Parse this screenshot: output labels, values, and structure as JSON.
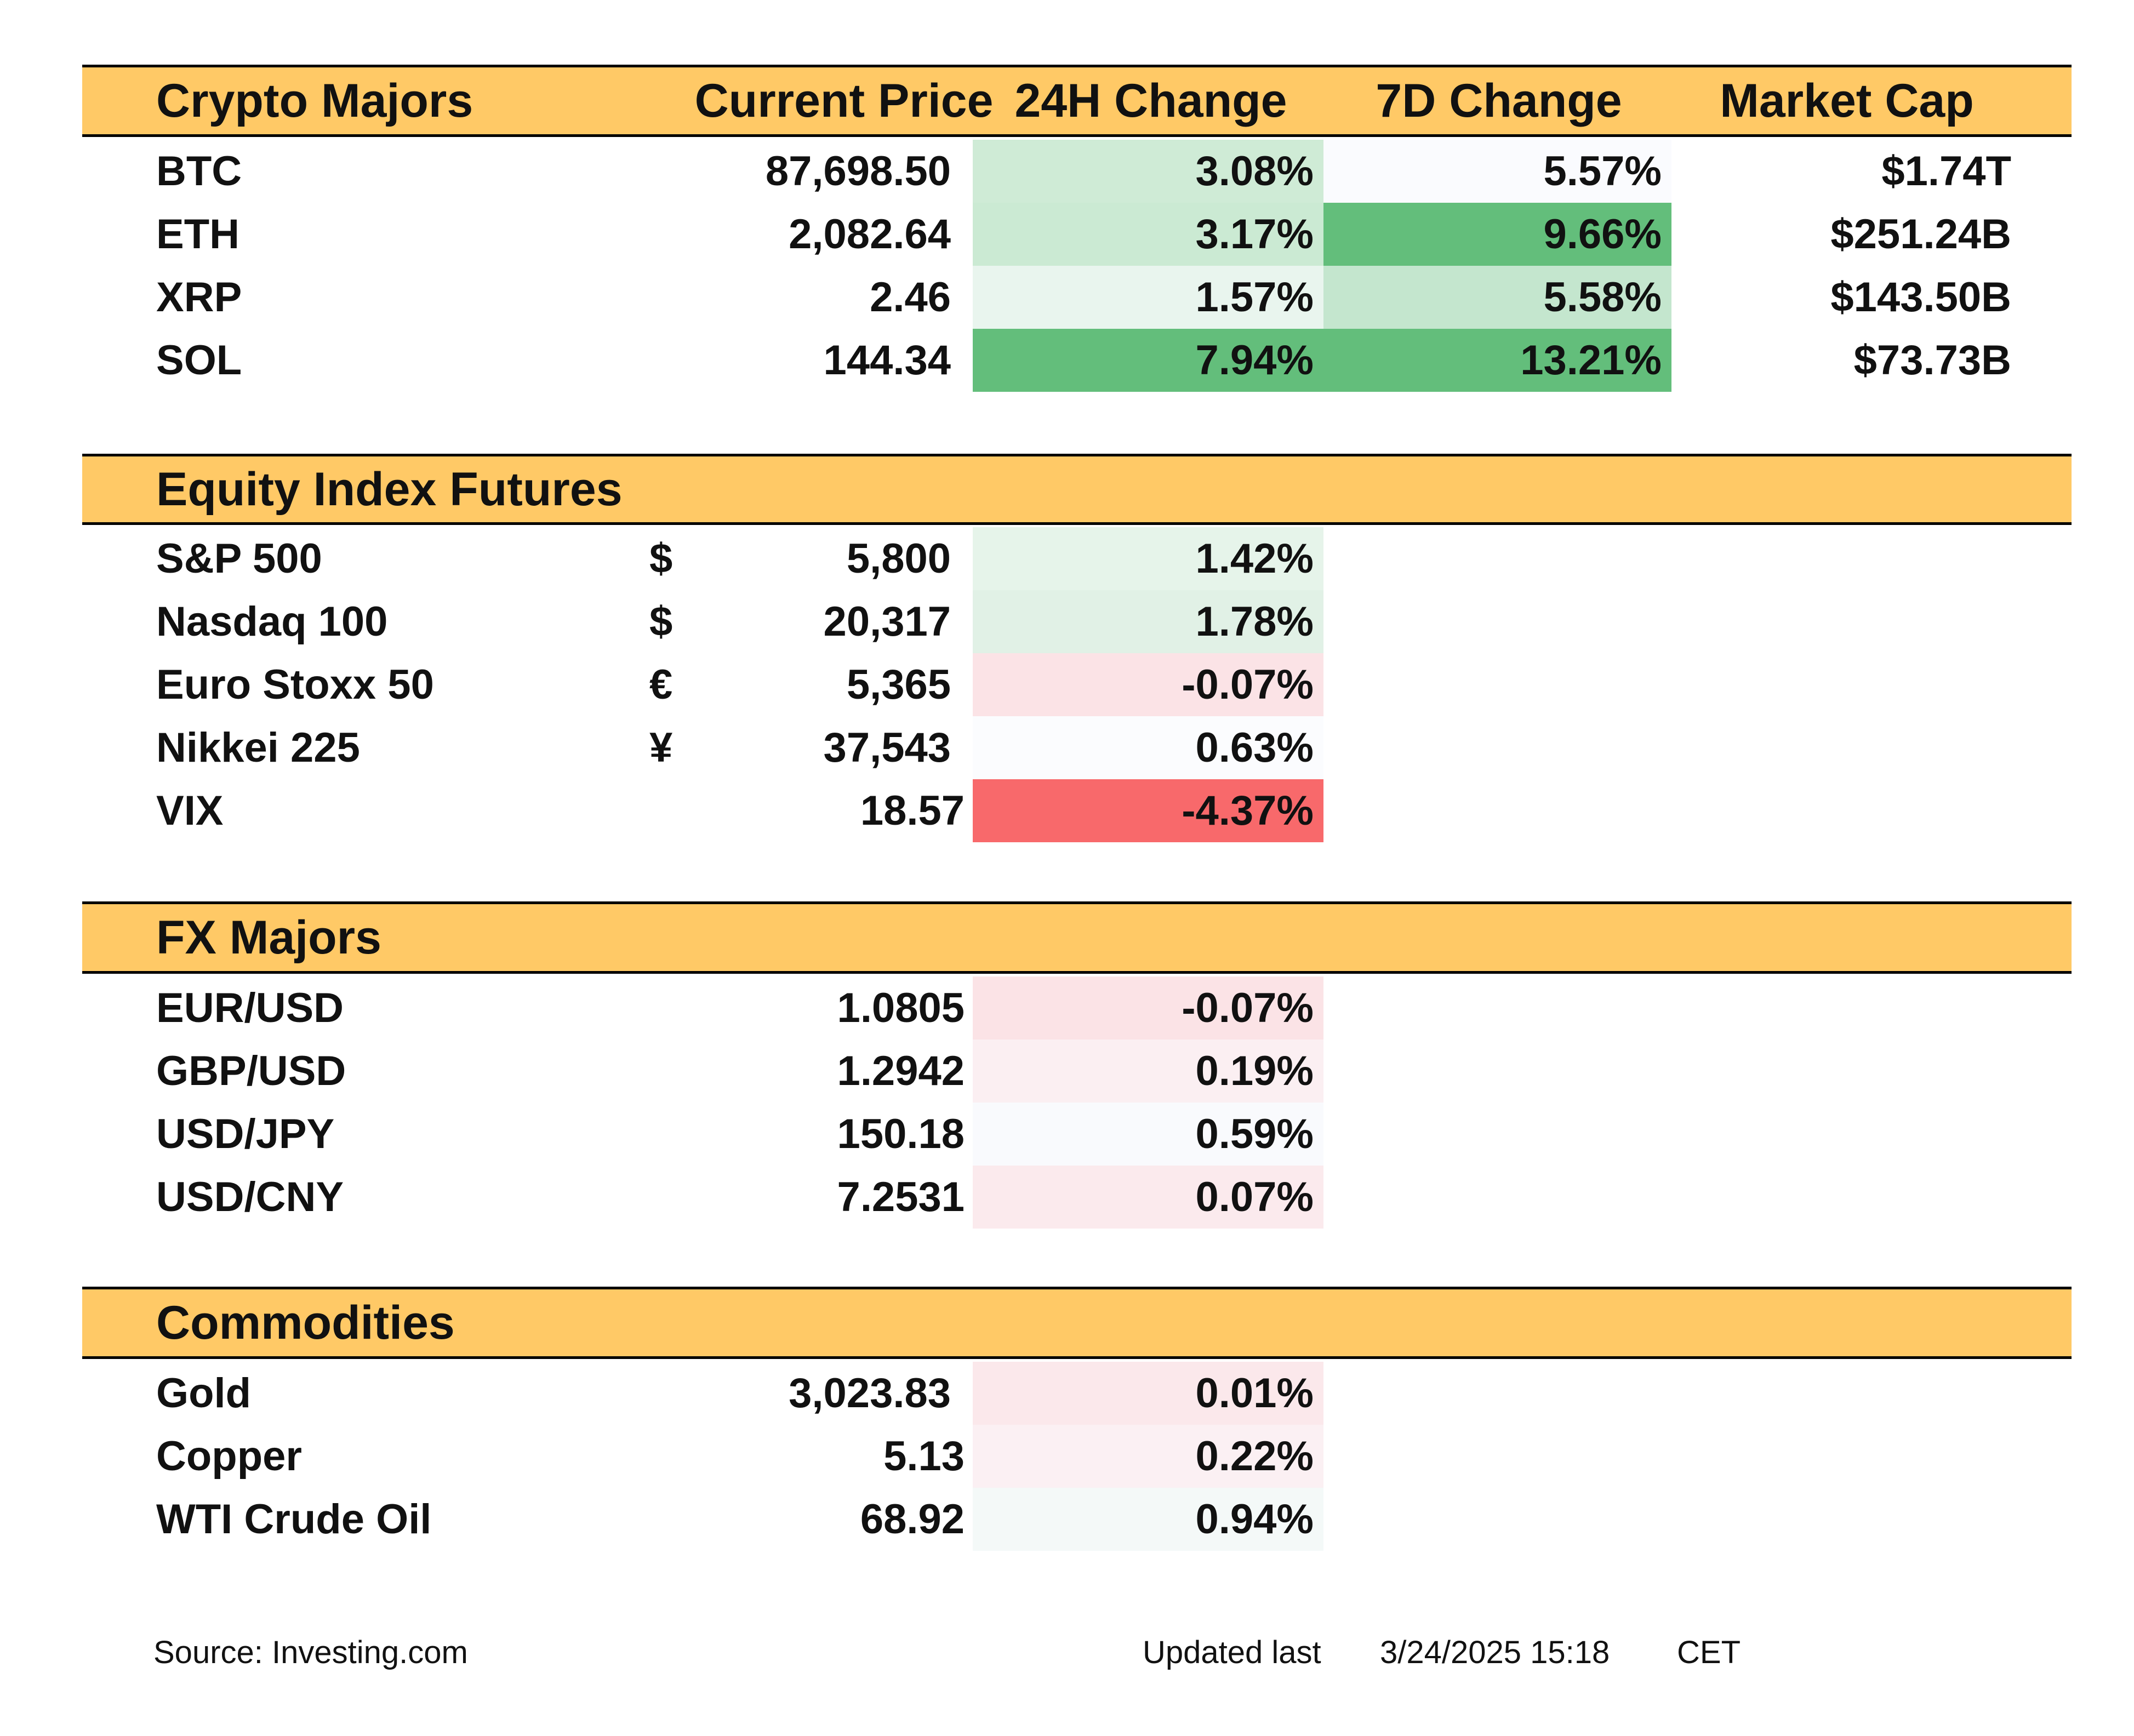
{
  "sections": {
    "crypto": {
      "title": "Crypto Majors",
      "col_price": "Current Price",
      "col_24h": "24H Change",
      "col_7d": "7D Change",
      "col_cap": "Market Cap",
      "rows": [
        {
          "name": "BTC",
          "price": "87,698.50",
          "change_24h": "3.08%",
          "change_7d": "5.57%",
          "market_cap": "$1.74T",
          "color_24h": "#CFEBD6",
          "color_7d": "#FAFBFE"
        },
        {
          "name": "ETH",
          "price": "2,082.64",
          "change_24h": "3.17%",
          "change_7d": "9.66%",
          "market_cap": "$251.24B",
          "color_24h": "#CBEAD3",
          "color_7d": "#63BE7B"
        },
        {
          "name": "XRP",
          "price": "2.46",
          "change_24h": "1.57%",
          "change_7d": "5.58%",
          "market_cap": "$143.50B",
          "color_24h": "#E9F5EE",
          "color_7d": "#C4E6CE"
        },
        {
          "name": "SOL",
          "price": "144.34",
          "change_24h": "7.94%",
          "change_7d": "13.21%",
          "market_cap": "$73.73B",
          "color_24h": "#63BE7B",
          "color_7d": "#63BE7B"
        }
      ]
    },
    "equity": {
      "title": "Equity Index Futures",
      "rows": [
        {
          "name": "S&P 500",
          "currency": "$",
          "price": "5,800",
          "change_24h": "1.42%",
          "color_24h": "#E6F4EA"
        },
        {
          "name": "Nasdaq 100",
          "currency": "$",
          "price": "20,317",
          "change_24h": "1.78%",
          "color_24h": "#E1F1E6"
        },
        {
          "name": "Euro Stoxx 50",
          "currency": "€",
          "price": "5,365",
          "change_24h": "-0.07%",
          "color_24h": "#FBE3E6"
        },
        {
          "name": "Nikkei 225",
          "currency": "¥",
          "price": "37,543",
          "change_24h": "0.63%",
          "color_24h": "#FBFCFE"
        },
        {
          "name": "VIX",
          "currency": "",
          "price": "18.57",
          "change_24h": "-4.37%",
          "color_24h": "#F8696B"
        }
      ]
    },
    "fx": {
      "title": "FX Majors",
      "rows": [
        {
          "name": "EUR/USD",
          "price": "1.0805",
          "change_24h": "-0.07%",
          "color_24h": "#FBE3E6"
        },
        {
          "name": "GBP/USD",
          "price": "1.2942",
          "change_24h": "0.19%",
          "color_24h": "#FBEFF2"
        },
        {
          "name": "USD/JPY",
          "price": "150.18",
          "change_24h": "0.59%",
          "color_24h": "#F9FAFD"
        },
        {
          "name": "USD/CNY",
          "price": "7.2531",
          "change_24h": "0.07%",
          "color_24h": "#FBEAED"
        }
      ]
    },
    "commodities": {
      "title": "Commodities",
      "rows": [
        {
          "name": "Gold",
          "price": "3,023.83",
          "change_24h": "0.01%",
          "color_24h": "#FBE8EB"
        },
        {
          "name": "Copper",
          "price": "5.13",
          "change_24h": "0.22%",
          "color_24h": "#FBF0F3"
        },
        {
          "name": "WTI Crude Oil",
          "price": "68.92",
          "change_24h": "0.94%",
          "color_24h": "#F4F9F8"
        }
      ]
    }
  },
  "footer": {
    "source": "Source: Investing.com",
    "updated_label": "Updated last",
    "updated_value": "3/24/2025 15:18",
    "timezone": "CET"
  },
  "colors": {
    "header_bg": "#FFC966",
    "header_border": "#000000",
    "text": "#111111"
  }
}
